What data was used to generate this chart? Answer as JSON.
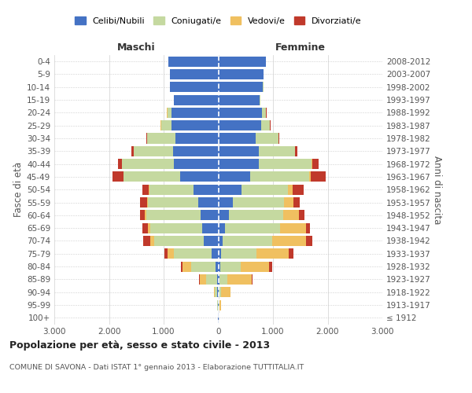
{
  "age_groups": [
    "100+",
    "95-99",
    "90-94",
    "85-89",
    "80-84",
    "75-79",
    "70-74",
    "65-69",
    "60-64",
    "55-59",
    "50-54",
    "45-49",
    "40-44",
    "35-39",
    "30-34",
    "25-29",
    "20-24",
    "15-19",
    "10-14",
    "5-9",
    "0-4"
  ],
  "birth_years": [
    "≤ 1912",
    "1913-1917",
    "1918-1922",
    "1923-1927",
    "1928-1932",
    "1933-1937",
    "1938-1942",
    "1943-1947",
    "1948-1952",
    "1953-1957",
    "1958-1962",
    "1963-1967",
    "1968-1972",
    "1973-1977",
    "1978-1982",
    "1983-1987",
    "1988-1992",
    "1993-1997",
    "1998-2002",
    "2003-2007",
    "2008-2012"
  ],
  "males_celibi": [
    5,
    8,
    15,
    25,
    45,
    120,
    260,
    290,
    320,
    370,
    460,
    700,
    810,
    830,
    780,
    860,
    860,
    810,
    880,
    880,
    910
  ],
  "males_coniugati": [
    4,
    12,
    45,
    200,
    450,
    700,
    910,
    960,
    1000,
    920,
    800,
    1030,
    950,
    720,
    520,
    190,
    75,
    8,
    4,
    2,
    2
  ],
  "males_vedovi": [
    1,
    4,
    22,
    120,
    160,
    115,
    75,
    38,
    22,
    13,
    9,
    4,
    4,
    2,
    1,
    1,
    1,
    0,
    0,
    0,
    0
  ],
  "males_divorziati": [
    0,
    0,
    2,
    4,
    28,
    55,
    125,
    95,
    95,
    125,
    115,
    195,
    75,
    38,
    18,
    9,
    4,
    1,
    0,
    0,
    0
  ],
  "females_nubili": [
    4,
    8,
    12,
    22,
    35,
    55,
    75,
    125,
    190,
    270,
    420,
    580,
    740,
    740,
    680,
    780,
    800,
    760,
    820,
    830,
    870
  ],
  "females_coniugate": [
    4,
    8,
    45,
    150,
    380,
    640,
    910,
    1000,
    1000,
    930,
    860,
    1080,
    960,
    660,
    420,
    160,
    75,
    8,
    3,
    1,
    1
  ],
  "females_vedove": [
    4,
    28,
    160,
    440,
    520,
    590,
    625,
    480,
    290,
    170,
    85,
    28,
    13,
    9,
    4,
    2,
    1,
    1,
    0,
    0,
    0
  ],
  "females_divorziate": [
    0,
    0,
    2,
    18,
    55,
    95,
    105,
    75,
    95,
    125,
    195,
    270,
    125,
    38,
    18,
    9,
    4,
    1,
    0,
    0,
    0
  ],
  "color_celibi": "#4472c4",
  "color_coniugati": "#c5d9a0",
  "color_vedovi": "#f0c060",
  "color_divorziati": "#c0392b",
  "title": "Popolazione per età, sesso e stato civile - 2013",
  "subtitle": "COMUNE DI SAVONA - Dati ISTAT 1° gennaio 2013 - Elaborazione TUTTITALIA.IT",
  "xlim": 3000,
  "bg": "#ffffff",
  "gridcolor": "#d0d0d0"
}
